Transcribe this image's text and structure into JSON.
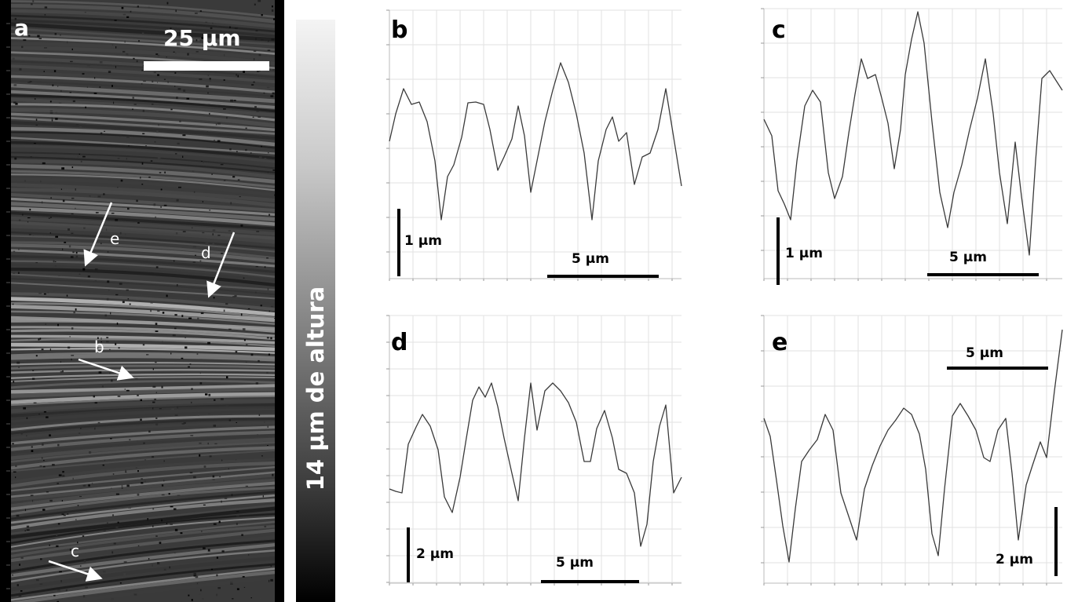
{
  "panel_a": {
    "letter": "a",
    "scale_bar_label": "25 µm",
    "arrows": [
      {
        "label": "e"
      },
      {
        "label": "d"
      },
      {
        "label": "b"
      },
      {
        "label": "c"
      }
    ]
  },
  "colorbar": {
    "label": "14 µm de altura"
  },
  "profiles": [
    {
      "letter": "b",
      "vertical_bar_label": "1 µm",
      "horizontal_bar_label": "5 µm"
    },
    {
      "letter": "c",
      "vertical_bar_label": "1 µm",
      "horizontal_bar_label": "5 µm"
    },
    {
      "letter": "d",
      "vertical_bar_label": "2 µm",
      "horizontal_bar_label": "5 µm"
    },
    {
      "letter": "e",
      "vertical_bar_label": "2 µm",
      "horizontal_bar_label": "5 µm"
    }
  ],
  "colors": {
    "trace": "#3a3a3a",
    "grid": "#e2e2e2",
    "micrograph_bg": "#000000"
  }
}
